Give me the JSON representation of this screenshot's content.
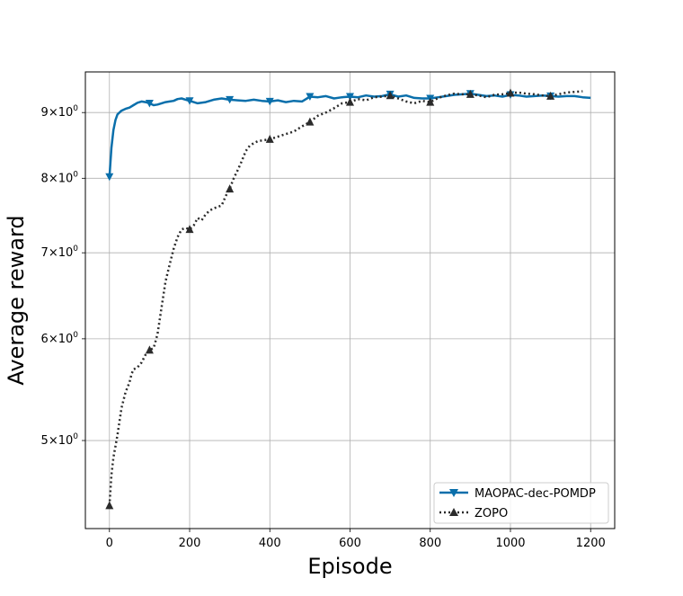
{
  "chart_data": {
    "type": "line",
    "xlabel": "Episode",
    "ylabel": "Average reward",
    "xlim": [
      -60,
      1260
    ],
    "ylim": [
      4.27,
      9.68
    ],
    "yscale": "log",
    "grid": true,
    "legend_placement": "lower-right",
    "x_ticks": [
      0,
      200,
      400,
      600,
      800,
      1000,
      1200
    ],
    "x_tick_labels": [
      "0",
      "200",
      "400",
      "600",
      "800",
      "1000",
      "1200"
    ],
    "y_ticks": [
      5,
      6,
      7,
      8,
      9
    ],
    "y_tick_labels": [
      {
        "base": "5",
        "times": "×",
        "ten": "10",
        "exp": "0"
      },
      {
        "base": "6",
        "times": "×",
        "ten": "10",
        "exp": "0"
      },
      {
        "base": "7",
        "times": "×",
        "ten": "10",
        "exp": "0"
      },
      {
        "base": "8",
        "times": "×",
        "ten": "10",
        "exp": "0"
      },
      {
        "base": "9",
        "times": "×",
        "ten": "10",
        "exp": "0"
      }
    ],
    "series": [
      {
        "name": "MAOPAC-dec-POMDP",
        "color": "#0a6fab",
        "style": "solid",
        "marker": "triangle-down",
        "x": [
          0,
          5,
          10,
          15,
          20,
          30,
          40,
          50,
          60,
          70,
          80,
          90,
          100,
          110,
          120,
          130,
          140,
          150,
          160,
          170,
          180,
          190,
          200,
          210,
          220,
          240,
          260,
          280,
          300,
          320,
          340,
          360,
          380,
          400,
          420,
          440,
          460,
          480,
          500,
          520,
          540,
          560,
          580,
          600,
          620,
          640,
          660,
          680,
          700,
          720,
          740,
          760,
          780,
          800,
          820,
          840,
          860,
          880,
          900,
          920,
          940,
          960,
          980,
          1000,
          1020,
          1040,
          1060,
          1080,
          1100,
          1120,
          1140,
          1160,
          1180,
          1200
        ],
        "y": [
          8.02,
          8.45,
          8.72,
          8.88,
          8.97,
          9.03,
          9.06,
          9.08,
          9.12,
          9.16,
          9.18,
          9.17,
          9.15,
          9.12,
          9.13,
          9.15,
          9.17,
          9.18,
          9.19,
          9.22,
          9.23,
          9.21,
          9.19,
          9.17,
          9.15,
          9.17,
          9.21,
          9.23,
          9.21,
          9.2,
          9.19,
          9.21,
          9.19,
          9.18,
          9.2,
          9.17,
          9.19,
          9.18,
          9.26,
          9.25,
          9.27,
          9.23,
          9.25,
          9.26,
          9.25,
          9.28,
          9.26,
          9.27,
          9.3,
          9.26,
          9.28,
          9.24,
          9.23,
          9.23,
          9.25,
          9.27,
          9.29,
          9.3,
          9.31,
          9.29,
          9.27,
          9.28,
          9.26,
          9.29,
          9.28,
          9.26,
          9.27,
          9.28,
          9.27,
          9.26,
          9.27,
          9.27,
          9.25,
          9.24
        ],
        "marker_x": [
          0,
          100,
          200,
          300,
          400,
          500,
          600,
          700,
          800,
          900,
          1000,
          1100
        ],
        "marker_y": [
          8.02,
          9.15,
          9.19,
          9.21,
          9.18,
          9.26,
          9.26,
          9.3,
          9.23,
          9.31,
          9.29,
          9.27
        ]
      },
      {
        "name": "ZOPO",
        "color": "#2b2b2b",
        "style": "dotted",
        "marker": "triangle-up",
        "x": [
          0,
          5,
          10,
          15,
          20,
          30,
          40,
          50,
          55,
          60,
          70,
          80,
          90,
          100,
          110,
          120,
          130,
          140,
          150,
          160,
          170,
          180,
          190,
          200,
          210,
          220,
          230,
          240,
          250,
          260,
          270,
          280,
          290,
          300,
          310,
          320,
          330,
          340,
          350,
          360,
          370,
          380,
          400,
          420,
          440,
          460,
          480,
          500,
          520,
          540,
          560,
          580,
          600,
          620,
          640,
          660,
          680,
          700,
          720,
          740,
          760,
          780,
          800,
          820,
          840,
          860,
          880,
          900,
          920,
          940,
          960,
          980,
          1000,
          1020,
          1040,
          1060,
          1080,
          1100,
          1120,
          1140,
          1160,
          1180
        ],
        "y": [
          4.45,
          4.7,
          4.85,
          4.95,
          5.05,
          5.3,
          5.45,
          5.55,
          5.63,
          5.68,
          5.7,
          5.75,
          5.83,
          5.88,
          5.9,
          6.05,
          6.35,
          6.65,
          6.85,
          7.05,
          7.2,
          7.3,
          7.32,
          7.3,
          7.35,
          7.45,
          7.42,
          7.5,
          7.55,
          7.58,
          7.6,
          7.62,
          7.75,
          7.85,
          8.0,
          8.12,
          8.25,
          8.4,
          8.48,
          8.52,
          8.55,
          8.56,
          8.58,
          8.62,
          8.66,
          8.7,
          8.78,
          8.85,
          8.95,
          9.0,
          9.07,
          9.15,
          9.17,
          9.22,
          9.2,
          9.25,
          9.26,
          9.28,
          9.23,
          9.18,
          9.15,
          9.19,
          9.17,
          9.24,
          9.28,
          9.31,
          9.3,
          9.3,
          9.28,
          9.25,
          9.29,
          9.3,
          9.32,
          9.33,
          9.31,
          9.3,
          9.28,
          9.27,
          9.3,
          9.33,
          9.34,
          9.35
        ],
        "marker_x": [
          0,
          100,
          200,
          300,
          400,
          500,
          600,
          700,
          800,
          900,
          1000,
          1100
        ],
        "marker_y": [
          4.45,
          5.88,
          7.3,
          7.85,
          8.58,
          8.85,
          9.17,
          9.28,
          9.17,
          9.3,
          9.32,
          9.27
        ]
      }
    ]
  }
}
